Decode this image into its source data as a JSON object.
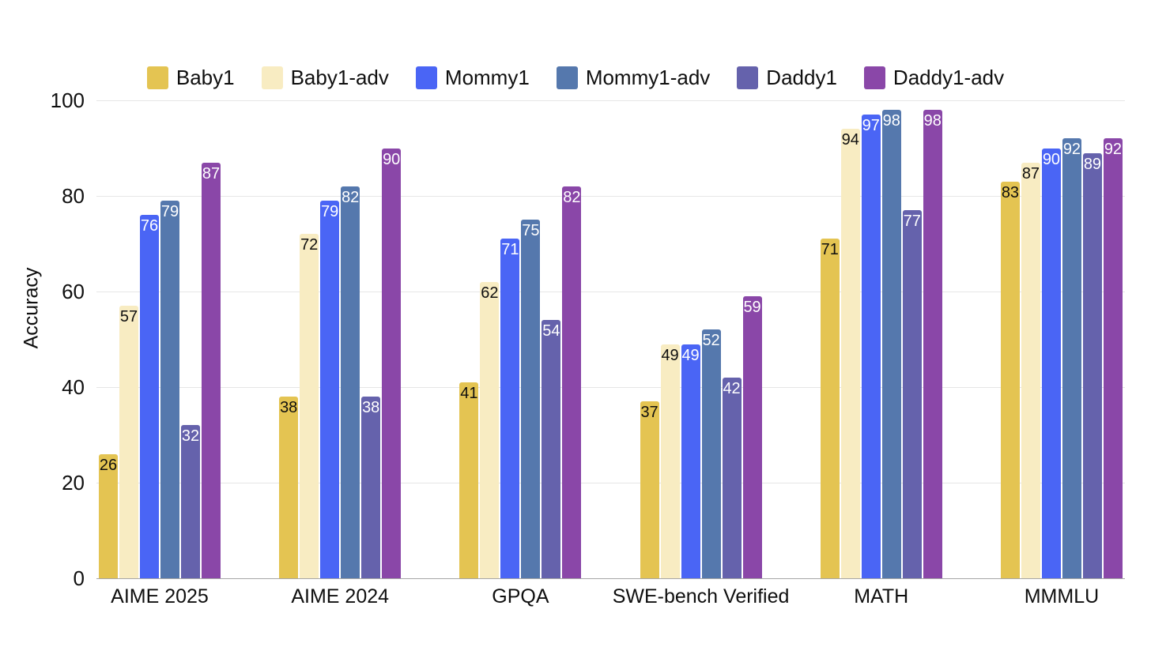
{
  "chart_data": {
    "type": "bar",
    "title": "",
    "xlabel": "",
    "ylabel": "Accuracy",
    "ylim": [
      0,
      100
    ],
    "yticks": [
      0,
      20,
      40,
      60,
      80,
      100
    ],
    "grid": true,
    "legend_position": "top",
    "background_color": "#ffffff",
    "gridline_color": "#e6e6e6",
    "baseline_color": "#a6a6a6",
    "text_color": "#0f0f0f",
    "categories": [
      "AIME 2025",
      "AIME 2024",
      "GPQA",
      "SWE-bench Verified",
      "MATH",
      "MMMLU"
    ],
    "series": [
      {
        "name": "Baby1",
        "color": "#e4c452",
        "label_color": "#0f0f0f",
        "values": [
          26,
          38,
          41,
          37,
          71,
          83
        ]
      },
      {
        "name": "Baby1-adv",
        "color": "#f8ecc2",
        "label_color": "#0f0f0f",
        "values": [
          57,
          72,
          62,
          49,
          94,
          87
        ]
      },
      {
        "name": "Mommy1",
        "color": "#4a65f5",
        "label_color": "#ffffff",
        "values": [
          76,
          79,
          71,
          49,
          97,
          90
        ]
      },
      {
        "name": "Mommy1-adv",
        "color": "#5578ad",
        "label_color": "#ffffff",
        "values": [
          79,
          82,
          75,
          52,
          98,
          92
        ]
      },
      {
        "name": "Daddy1",
        "color": "#6562ac",
        "label_color": "#ffffff",
        "values": [
          32,
          38,
          54,
          42,
          77,
          89
        ]
      },
      {
        "name": "Daddy1-adv",
        "color": "#8a47a8",
        "label_color": "#ffffff",
        "values": [
          87,
          90,
          82,
          59,
          98,
          92
        ]
      }
    ]
  }
}
